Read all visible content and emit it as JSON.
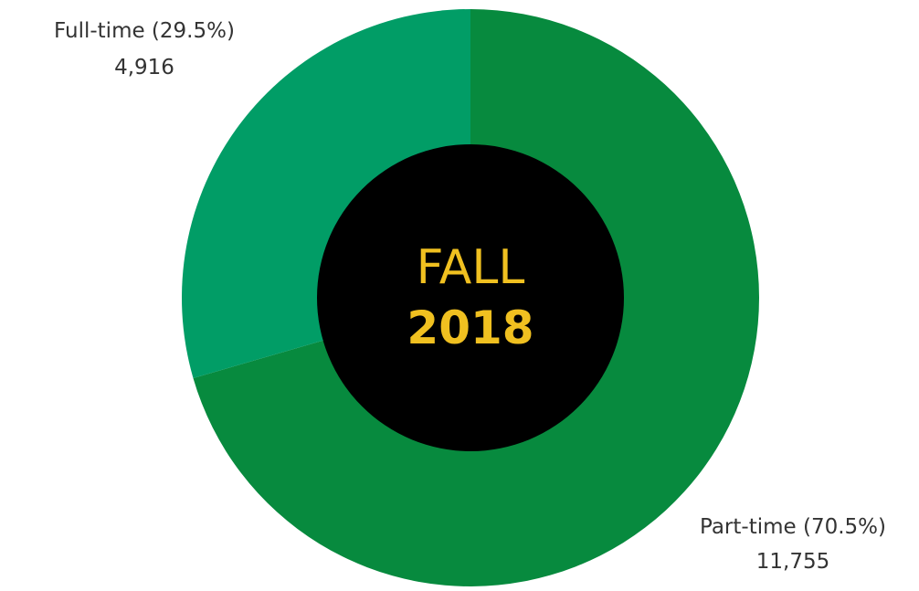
{
  "chart_data": {
    "type": "pie",
    "variant": "donut",
    "categories": [
      "Part-time",
      "Full-time"
    ],
    "values": [
      11755,
      4916
    ],
    "percent_labels": [
      "Part-time (70.5%)",
      "Full-time (29.5%)"
    ],
    "value_labels": [
      "11,755",
      "4,916"
    ],
    "colors": [
      "#078a3e",
      "#019d66"
    ],
    "center_text": {
      "line1": "FALL",
      "line2": "2018",
      "color": "#f0c020",
      "background": "#000000"
    },
    "legend": "none"
  }
}
